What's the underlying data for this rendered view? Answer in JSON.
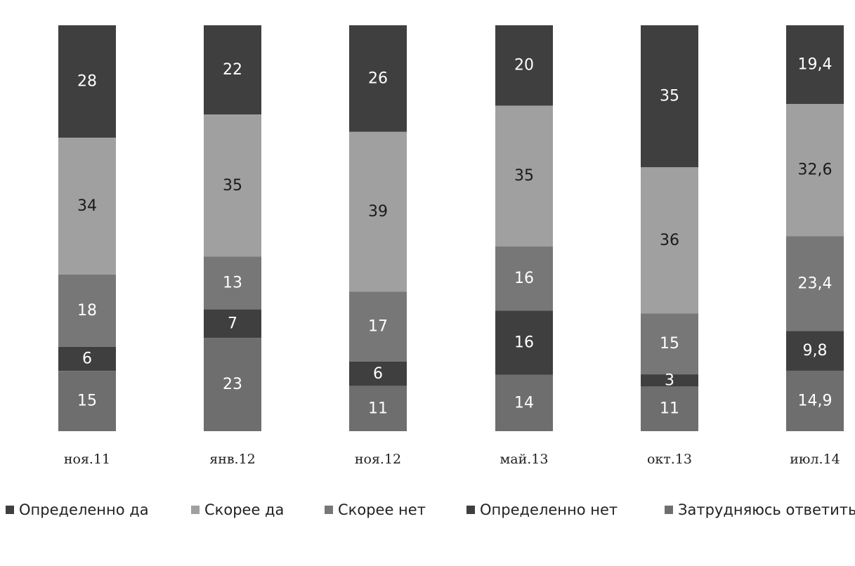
{
  "chart_data": {
    "type": "bar",
    "stacked": true,
    "categories": [
      "ноя.11",
      "янв.12",
      "ноя.12",
      "май.13",
      "окт.13",
      "июл.14"
    ],
    "series": [
      {
        "name": "Определенно да",
        "color": "#3f3f3f",
        "values": [
          28,
          22,
          26,
          20,
          35,
          19.4
        ],
        "labels": [
          "28",
          "22",
          "26",
          "20",
          "35",
          "19,4"
        ]
      },
      {
        "name": "Скорее да",
        "color": "#a0a0a0",
        "values": [
          34,
          35,
          39,
          35,
          36,
          32.6
        ],
        "labels": [
          "34",
          "35",
          "39",
          "35",
          "36",
          "32,6"
        ]
      },
      {
        "name": "Скорее нет",
        "color": "#777777",
        "values": [
          18,
          13,
          17,
          16,
          15,
          23.4
        ],
        "labels": [
          "18",
          "13",
          "17",
          "16",
          "15",
          "23,4"
        ]
      },
      {
        "name": "Определенно нет",
        "color": "#3f3f3f",
        "values": [
          6,
          7,
          6,
          16,
          3,
          9.8
        ],
        "labels": [
          "6",
          "7",
          "6",
          "16",
          "3",
          "9,8"
        ]
      },
      {
        "name": "Затрудняюсь ответить",
        "color": "#6e6e6e",
        "values": [
          15,
          23,
          11,
          14,
          11,
          14.9
        ],
        "labels": [
          "15",
          "23",
          "11",
          "14",
          "11",
          "14,9"
        ]
      }
    ],
    "title": "",
    "xlabel": "",
    "ylabel": "",
    "grid": false,
    "legend_position": "bottom"
  }
}
